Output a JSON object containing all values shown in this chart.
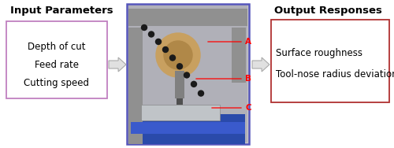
{
  "input_title": "Input Parameters",
  "input_items": [
    "Depth of cut",
    "Feed rate",
    "Cutting speed"
  ],
  "output_title": "Output Responses",
  "output_items": [
    "Surface roughness",
    "Tool-nose radius deviation"
  ],
  "input_box_color": "#c080c0",
  "output_box_color": "#b03030",
  "bg_color": "#ffffff",
  "photo_border_color": "#5555bb",
  "label_A": "A",
  "label_B": "B",
  "label_C": "C",
  "label_color": "#ff0000",
  "arrow_fill": "#e0e0e0",
  "arrow_edge": "#aaaaaa",
  "font_size_title": 9.5,
  "font_size_items": 8.5,
  "font_size_label": 7.5,
  "fig_width": 5.0,
  "fig_height": 1.88,
  "dpi": 100
}
